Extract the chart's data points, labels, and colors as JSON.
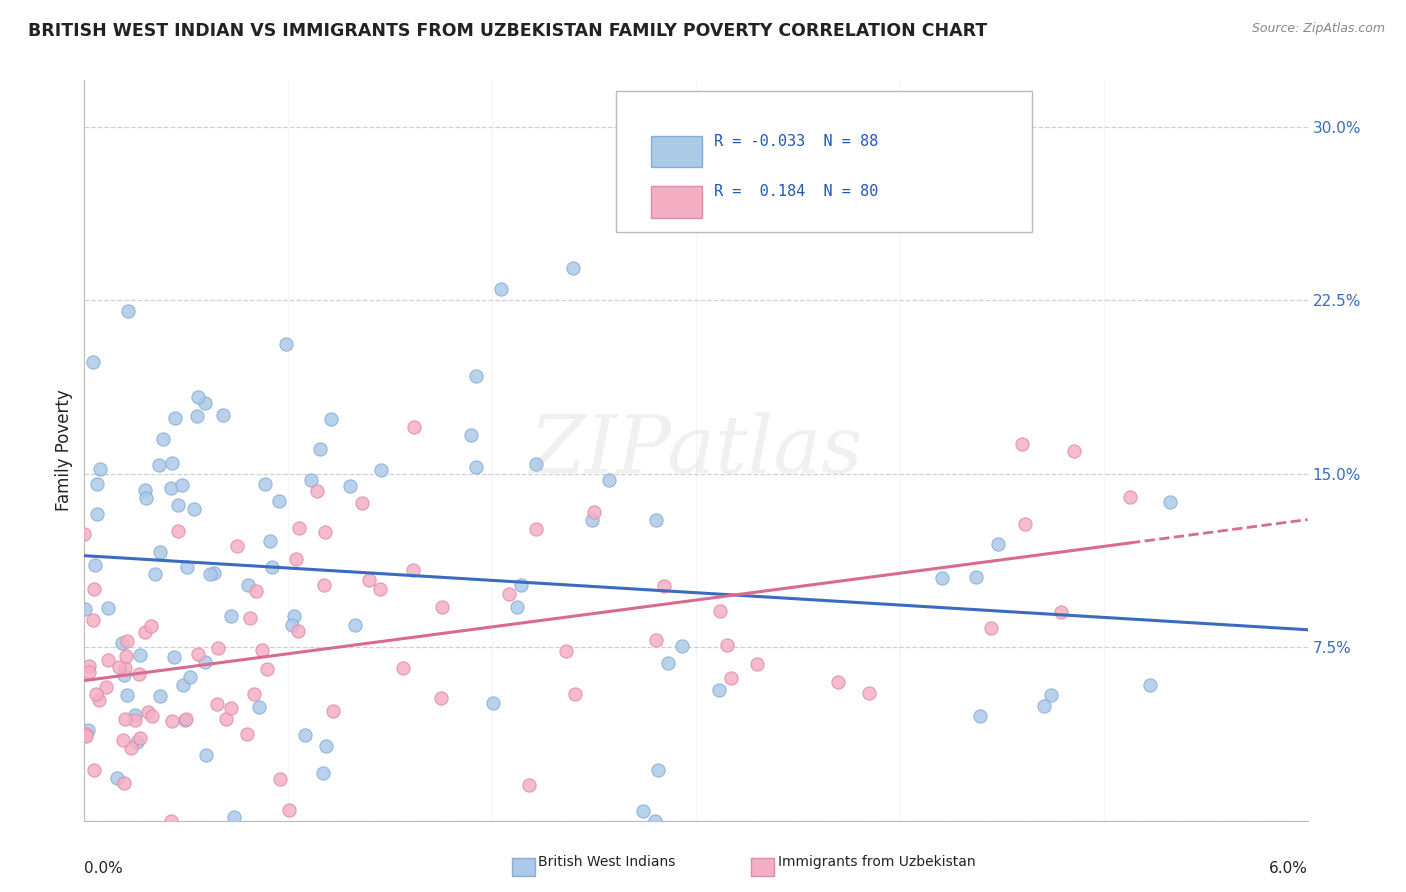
{
  "title": "BRITISH WEST INDIAN VS IMMIGRANTS FROM UZBEKISTAN FAMILY POVERTY CORRELATION CHART",
  "source": "Source: ZipAtlas.com",
  "xlabel_bottom_left": "0.0%",
  "xlabel_bottom_right": "6.0%",
  "ylabel": "Family Poverty",
  "series1_label": "British West Indians",
  "series2_label": "Immigrants from Uzbekistan",
  "series1_color": "#adc9e8",
  "series2_color": "#f5afc4",
  "series1_edge": "#85aed6",
  "series2_edge": "#e08aaa",
  "trend1_color": "#3a6bbf",
  "trend2_color": "#d96b8e",
  "R1": -0.033,
  "N1": 88,
  "R2": 0.184,
  "N2": 80,
  "xlim": [
    0.0,
    6.0
  ],
  "ylim": [
    0.0,
    32.0
  ],
  "yticks": [
    0.0,
    7.5,
    15.0,
    22.5,
    30.0
  ],
  "ytick_labels": [
    "",
    "7.5%",
    "15.0%",
    "22.5%",
    "30.0%"
  ],
  "watermark": "ZIPatlas",
  "background_color": "#ffffff",
  "grid_color": "#d0d0d0",
  "title_color": "#222222",
  "legend_R_color": "#2255bb",
  "axis_label_color": "#3a6bbf"
}
